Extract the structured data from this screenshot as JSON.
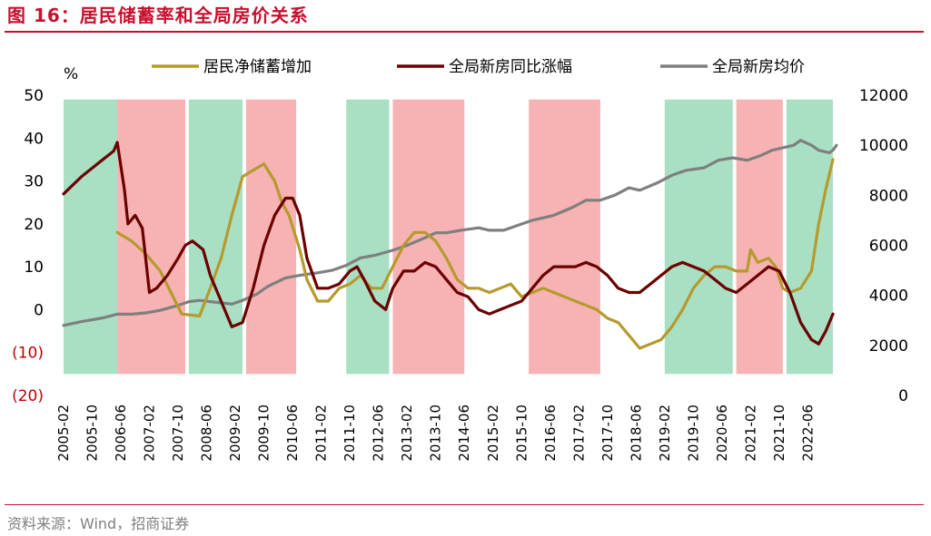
{
  "figure": {
    "title": "图 16：居民储蓄率和全局房价关系",
    "source": "资料来源：Wind，招商证券"
  },
  "chart_data": {
    "type": "line",
    "left_unit": "%",
    "left_axis": {
      "ylim": [
        -20,
        50
      ],
      "ticks": [
        "50",
        "40",
        "30",
        "20",
        "10",
        "0",
        "(10)",
        "(20)"
      ],
      "values": [
        50,
        40,
        30,
        20,
        10,
        0,
        -10,
        -20
      ]
    },
    "right_axis": {
      "ylim": [
        0,
        12000
      ],
      "ticks": [
        "12000",
        "10000",
        "8000",
        "6000",
        "4000",
        "2000",
        "0"
      ],
      "values": [
        12000,
        10000,
        8000,
        6000,
        4000,
        2000,
        0
      ]
    },
    "x_ticks": [
      "2005-02",
      "2005-10",
      "2006-06",
      "2007-02",
      "2007-10",
      "2008-06",
      "2009-02",
      "2009-10",
      "2010-06",
      "2011-02",
      "2011-10",
      "2012-06",
      "2013-02",
      "2013-10",
      "2014-06",
      "2015-02",
      "2015-10",
      "2016-06",
      "2017-02",
      "2017-10",
      "2018-06",
      "2019-02",
      "2019-10",
      "2020-06",
      "2021-02",
      "2021-10",
      "2022-06"
    ],
    "x_range": [
      2005.083,
      2023.0
    ],
    "legend": [
      "居民净储蓄增加",
      "全局新房同比涨幅",
      "全局新房均价"
    ],
    "colors": {
      "savings": "#b59a2e",
      "yoy": "#6b0000",
      "price": "#7f7f7f",
      "green_band": "#a9e0c4",
      "red_band": "#f7b3b3"
    },
    "bands": [
      {
        "start": 2005.083,
        "end": 2006.333,
        "color": "green"
      },
      {
        "start": 2006.333,
        "end": 2007.917,
        "color": "red"
      },
      {
        "start": 2008.0,
        "end": 2009.25,
        "color": "green"
      },
      {
        "start": 2009.333,
        "end": 2010.5,
        "color": "red"
      },
      {
        "start": 2011.667,
        "end": 2012.667,
        "color": "green"
      },
      {
        "start": 2012.75,
        "end": 2014.417,
        "color": "red"
      },
      {
        "start": 2015.917,
        "end": 2017.583,
        "color": "red"
      },
      {
        "start": 2019.083,
        "end": 2020.667,
        "color": "green"
      },
      {
        "start": 2020.75,
        "end": 2021.833,
        "color": "red"
      },
      {
        "start": 2021.917,
        "end": 2023.0,
        "color": "green"
      }
    ],
    "series": [
      {
        "name": "居民净储蓄增加",
        "axis": "left",
        "points": [
          [
            2006.333,
            18
          ],
          [
            2006.667,
            16
          ],
          [
            2007.0,
            13
          ],
          [
            2007.333,
            9
          ],
          [
            2007.583,
            4
          ],
          [
            2007.833,
            -1
          ],
          [
            2008.25,
            -1.5
          ],
          [
            2008.5,
            5
          ],
          [
            2008.75,
            12
          ],
          [
            2009.0,
            22
          ],
          [
            2009.25,
            31
          ],
          [
            2009.583,
            33
          ],
          [
            2009.75,
            34
          ],
          [
            2010.0,
            30
          ],
          [
            2010.167,
            25
          ],
          [
            2010.333,
            22
          ],
          [
            2010.583,
            14
          ],
          [
            2010.75,
            7
          ],
          [
            2011.0,
            2
          ],
          [
            2011.25,
            2
          ],
          [
            2011.5,
            5
          ],
          [
            2011.75,
            6
          ],
          [
            2012.0,
            8
          ],
          [
            2012.25,
            5
          ],
          [
            2012.5,
            5
          ],
          [
            2012.75,
            10
          ],
          [
            2013.0,
            15
          ],
          [
            2013.25,
            18
          ],
          [
            2013.5,
            18
          ],
          [
            2013.75,
            16
          ],
          [
            2014.0,
            12
          ],
          [
            2014.25,
            7
          ],
          [
            2014.5,
            5
          ],
          [
            2014.75,
            5
          ],
          [
            2015.0,
            4
          ],
          [
            2015.25,
            5
          ],
          [
            2015.5,
            6
          ],
          [
            2015.75,
            3
          ],
          [
            2016.0,
            4
          ],
          [
            2016.25,
            5
          ],
          [
            2016.5,
            4
          ],
          [
            2016.75,
            3
          ],
          [
            2017.0,
            2
          ],
          [
            2017.25,
            1
          ],
          [
            2017.5,
            0
          ],
          [
            2017.75,
            -2
          ],
          [
            2018.0,
            -3
          ],
          [
            2018.25,
            -6
          ],
          [
            2018.5,
            -9
          ],
          [
            2018.75,
            -8
          ],
          [
            2019.0,
            -7
          ],
          [
            2019.25,
            -4
          ],
          [
            2019.5,
            0
          ],
          [
            2019.75,
            5
          ],
          [
            2020.0,
            8
          ],
          [
            2020.25,
            10
          ],
          [
            2020.5,
            10
          ],
          [
            2020.75,
            9
          ],
          [
            2021.0,
            9
          ],
          [
            2021.083,
            14
          ],
          [
            2021.25,
            11
          ],
          [
            2021.5,
            12
          ],
          [
            2021.667,
            10
          ],
          [
            2021.833,
            5
          ],
          [
            2022.0,
            4
          ],
          [
            2022.25,
            5
          ],
          [
            2022.5,
            9
          ],
          [
            2022.667,
            20
          ],
          [
            2022.833,
            28
          ],
          [
            2023.0,
            35
          ]
        ]
      },
      {
        "name": "全局新房同比涨幅",
        "axis": "left",
        "points": [
          [
            2005.083,
            27
          ],
          [
            2005.5,
            31
          ],
          [
            2006.0,
            35
          ],
          [
            2006.25,
            37
          ],
          [
            2006.333,
            39
          ],
          [
            2006.5,
            28
          ],
          [
            2006.583,
            20
          ],
          [
            2006.75,
            22
          ],
          [
            2006.917,
            19
          ],
          [
            2007.083,
            4
          ],
          [
            2007.25,
            5
          ],
          [
            2007.5,
            8
          ],
          [
            2007.75,
            12
          ],
          [
            2007.917,
            15
          ],
          [
            2008.083,
            16
          ],
          [
            2008.333,
            14
          ],
          [
            2008.5,
            8
          ],
          [
            2008.75,
            2
          ],
          [
            2009.0,
            -4
          ],
          [
            2009.25,
            -3
          ],
          [
            2009.5,
            5
          ],
          [
            2009.75,
            15
          ],
          [
            2010.0,
            22
          ],
          [
            2010.25,
            26
          ],
          [
            2010.417,
            26
          ],
          [
            2010.583,
            22
          ],
          [
            2010.75,
            12
          ],
          [
            2011.0,
            5
          ],
          [
            2011.25,
            5
          ],
          [
            2011.5,
            6
          ],
          [
            2011.75,
            9
          ],
          [
            2011.917,
            10
          ],
          [
            2012.083,
            7
          ],
          [
            2012.333,
            2
          ],
          [
            2012.583,
            0
          ],
          [
            2012.75,
            5
          ],
          [
            2013.0,
            9
          ],
          [
            2013.25,
            9
          ],
          [
            2013.5,
            11
          ],
          [
            2013.75,
            10
          ],
          [
            2014.0,
            7
          ],
          [
            2014.25,
            4
          ],
          [
            2014.5,
            3
          ],
          [
            2014.75,
            0
          ],
          [
            2015.0,
            -1
          ],
          [
            2015.25,
            0
          ],
          [
            2015.5,
            1
          ],
          [
            2015.75,
            2
          ],
          [
            2016.0,
            5
          ],
          [
            2016.25,
            8
          ],
          [
            2016.5,
            10
          ],
          [
            2016.75,
            10
          ],
          [
            2017.0,
            10
          ],
          [
            2017.25,
            11
          ],
          [
            2017.5,
            10
          ],
          [
            2017.75,
            8
          ],
          [
            2018.0,
            5
          ],
          [
            2018.25,
            4
          ],
          [
            2018.5,
            4
          ],
          [
            2018.75,
            6
          ],
          [
            2019.0,
            8
          ],
          [
            2019.25,
            10
          ],
          [
            2019.5,
            11
          ],
          [
            2019.75,
            10
          ],
          [
            2020.0,
            9
          ],
          [
            2020.25,
            7
          ],
          [
            2020.5,
            5
          ],
          [
            2020.75,
            4
          ],
          [
            2021.0,
            6
          ],
          [
            2021.25,
            8
          ],
          [
            2021.5,
            10
          ],
          [
            2021.75,
            9
          ],
          [
            2022.0,
            4
          ],
          [
            2022.25,
            -3
          ],
          [
            2022.5,
            -7
          ],
          [
            2022.667,
            -8
          ],
          [
            2022.833,
            -5
          ],
          [
            2023.0,
            -1
          ]
        ]
      },
      {
        "name": "全局新房均价",
        "axis": "right",
        "points": [
          [
            2005.083,
            2800
          ],
          [
            2005.5,
            2950
          ],
          [
            2006.0,
            3100
          ],
          [
            2006.333,
            3250
          ],
          [
            2006.667,
            3250
          ],
          [
            2007.0,
            3300
          ],
          [
            2007.333,
            3400
          ],
          [
            2007.75,
            3600
          ],
          [
            2008.0,
            3750
          ],
          [
            2008.25,
            3800
          ],
          [
            2008.5,
            3750
          ],
          [
            2008.75,
            3700
          ],
          [
            2009.0,
            3650
          ],
          [
            2009.25,
            3800
          ],
          [
            2009.583,
            4050
          ],
          [
            2009.833,
            4350
          ],
          [
            2010.25,
            4700
          ],
          [
            2010.583,
            4800
          ],
          [
            2011.0,
            4900
          ],
          [
            2011.333,
            5000
          ],
          [
            2011.667,
            5200
          ],
          [
            2012.0,
            5500
          ],
          [
            2012.333,
            5600
          ],
          [
            2012.75,
            5800
          ],
          [
            2013.083,
            6000
          ],
          [
            2013.5,
            6300
          ],
          [
            2013.75,
            6500
          ],
          [
            2014.0,
            6500
          ],
          [
            2014.333,
            6600
          ],
          [
            2014.75,
            6700
          ],
          [
            2015.0,
            6600
          ],
          [
            2015.333,
            6600
          ],
          [
            2015.667,
            6800
          ],
          [
            2016.0,
            7000
          ],
          [
            2016.5,
            7200
          ],
          [
            2016.917,
            7500
          ],
          [
            2017.25,
            7800
          ],
          [
            2017.583,
            7800
          ],
          [
            2017.917,
            8000
          ],
          [
            2018.25,
            8300
          ],
          [
            2018.5,
            8200
          ],
          [
            2018.917,
            8500
          ],
          [
            2019.25,
            8800
          ],
          [
            2019.583,
            9000
          ],
          [
            2020.0,
            9100
          ],
          [
            2020.333,
            9400
          ],
          [
            2020.667,
            9500
          ],
          [
            2021.0,
            9400
          ],
          [
            2021.333,
            9600
          ],
          [
            2021.583,
            9800
          ],
          [
            2021.833,
            9900
          ],
          [
            2022.083,
            10000
          ],
          [
            2022.25,
            10200
          ],
          [
            2022.5,
            10000
          ],
          [
            2022.667,
            9800
          ],
          [
            2022.917,
            9700
          ],
          [
            2023.0,
            9800
          ],
          [
            2023.083,
            10000
          ]
        ]
      }
    ]
  }
}
